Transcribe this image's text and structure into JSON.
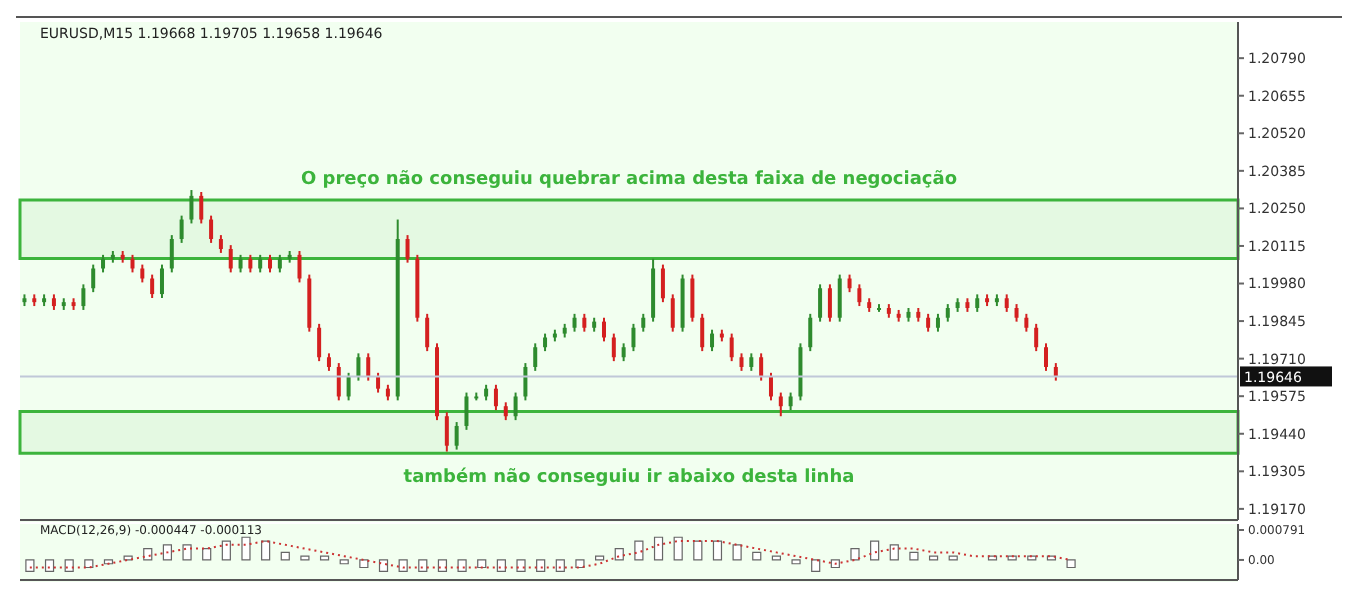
{
  "chart_data": [
    {
      "type": "candlestick",
      "title": "EURUSD,M15 1.19668 1.19705 1.19658 1.19646",
      "categories": [
        null,
        null,
        null,
        null,
        null,
        null,
        null,
        null,
        null,
        null,
        null,
        null,
        null,
        null,
        null,
        null,
        null,
        null,
        null,
        null,
        null,
        null,
        null,
        null,
        null,
        null,
        null,
        null,
        null,
        null,
        null,
        null,
        null,
        null,
        null,
        null,
        null,
        null,
        null,
        null,
        null,
        null,
        null,
        null,
        null,
        null,
        null,
        null,
        null,
        null,
        null,
        null,
        null,
        null,
        null,
        null,
        null,
        null,
        null,
        null,
        null,
        null,
        null,
        null,
        null,
        null,
        null,
        null,
        null,
        null,
        null,
        null,
        null,
        null,
        null,
        null,
        null,
        null,
        null,
        null,
        null,
        null,
        null,
        null,
        null,
        null,
        null,
        null,
        null,
        null,
        null,
        null,
        null,
        null,
        null,
        null,
        null,
        null,
        null,
        null,
        null,
        null,
        null,
        null,
        null,
        null,
        null,
        null,
        null,
        null,
        null,
        null,
        null,
        null,
        null,
        null,
        null,
        null,
        null,
        null,
        null,
        null,
        null,
        null
      ],
      "ohlc": [
        [
          1.19913,
          1.19941,
          1.19899,
          1.19927
        ],
        [
          1.19927,
          1.19941,
          1.19899,
          1.19913
        ],
        [
          1.19913,
          1.19941,
          1.19899,
          1.19927
        ],
        [
          1.19927,
          1.19941,
          1.19885,
          1.19899
        ],
        [
          1.19899,
          1.19927,
          1.19885,
          1.19913
        ],
        [
          1.19913,
          1.19927,
          1.19885,
          1.19899
        ],
        [
          1.19899,
          1.19977,
          1.19885,
          1.19963
        ],
        [
          1.19963,
          1.20048,
          1.19949,
          1.20034
        ],
        [
          1.20034,
          1.20083,
          1.2002,
          1.20069
        ],
        [
          1.20069,
          1.20097,
          1.20055,
          1.20083
        ],
        [
          1.20083,
          1.20097,
          1.20055,
          1.20069
        ],
        [
          1.20069,
          1.20083,
          1.2002,
          1.20034
        ],
        [
          1.20034,
          1.20048,
          1.19984,
          1.19998
        ],
        [
          1.19998,
          1.20012,
          1.19928,
          1.19942
        ],
        [
          1.19942,
          1.20048,
          1.19928,
          1.20034
        ],
        [
          1.20034,
          1.20154,
          1.2002,
          1.2014
        ],
        [
          1.2014,
          1.20224,
          1.20126,
          1.2021
        ],
        [
          1.2021,
          1.20316,
          1.20196,
          1.20295
        ],
        [
          1.20295,
          1.20309,
          1.20196,
          1.2021
        ],
        [
          1.2021,
          1.20224,
          1.20126,
          1.2014
        ],
        [
          1.2014,
          1.20154,
          1.2009,
          1.20104
        ],
        [
          1.20104,
          1.20118,
          1.2002,
          1.20034
        ],
        [
          1.20034,
          1.20083,
          1.2002,
          1.20069
        ],
        [
          1.20069,
          1.20083,
          1.2002,
          1.20034
        ],
        [
          1.20034,
          1.20083,
          1.2002,
          1.20069
        ],
        [
          1.20069,
          1.20083,
          1.2002,
          1.20034
        ],
        [
          1.20034,
          1.20083,
          1.2002,
          1.20069
        ],
        [
          1.20069,
          1.20097,
          1.20055,
          1.20083
        ],
        [
          1.20083,
          1.20097,
          1.19984,
          1.19998
        ],
        [
          1.19998,
          1.20012,
          1.19807,
          1.19821
        ],
        [
          1.19821,
          1.19835,
          1.19701,
          1.19715
        ],
        [
          1.19715,
          1.19729,
          1.19666,
          1.1968
        ],
        [
          1.1968,
          1.19694,
          1.1956,
          1.19574
        ],
        [
          1.19574,
          1.19659,
          1.1956,
          1.19645
        ],
        [
          1.19645,
          1.19729,
          1.19631,
          1.19715
        ],
        [
          1.19715,
          1.19729,
          1.19631,
          1.19645
        ],
        [
          1.19645,
          1.19659,
          1.19588,
          1.19602
        ],
        [
          1.19602,
          1.19616,
          1.1956,
          1.19574
        ],
        [
          1.19574,
          1.2021,
          1.1956,
          1.2014
        ],
        [
          1.2014,
          1.20154,
          1.20055,
          1.20069
        ],
        [
          1.20069,
          1.20083,
          1.19843,
          1.19857
        ],
        [
          1.19857,
          1.19871,
          1.19737,
          1.19751
        ],
        [
          1.19751,
          1.19765,
          1.19489,
          1.19503
        ],
        [
          1.19503,
          1.19517,
          1.19376,
          1.19397
        ],
        [
          1.19397,
          1.19482,
          1.19383,
          1.19468
        ],
        [
          1.19468,
          1.19588,
          1.19454,
          1.19574
        ],
        [
          1.19574,
          1.19588,
          1.1956,
          1.19574
        ],
        [
          1.19574,
          1.19616,
          1.1956,
          1.19602
        ],
        [
          1.19602,
          1.19616,
          1.19525,
          1.19539
        ],
        [
          1.19539,
          1.19553,
          1.19489,
          1.19503
        ],
        [
          1.19503,
          1.19588,
          1.19489,
          1.19574
        ],
        [
          1.19574,
          1.19694,
          1.1956,
          1.1968
        ],
        [
          1.1968,
          1.19765,
          1.19666,
          1.19751
        ],
        [
          1.19751,
          1.198,
          1.19737,
          1.19786
        ],
        [
          1.19786,
          1.19814,
          1.19772,
          1.198
        ],
        [
          1.198,
          1.19835,
          1.19786,
          1.19821
        ],
        [
          1.19821,
          1.19871,
          1.19807,
          1.19857
        ],
        [
          1.19857,
          1.19871,
          1.19807,
          1.19821
        ],
        [
          1.19821,
          1.19857,
          1.19807,
          1.19843
        ],
        [
          1.19843,
          1.19857,
          1.19772,
          1.19786
        ],
        [
          1.19786,
          1.198,
          1.19701,
          1.19715
        ],
        [
          1.19715,
          1.19765,
          1.19701,
          1.19751
        ],
        [
          1.19751,
          1.19835,
          1.19737,
          1.19821
        ],
        [
          1.19821,
          1.19871,
          1.19807,
          1.19857
        ],
        [
          1.19857,
          1.20069,
          1.19843,
          1.20034
        ],
        [
          1.20034,
          1.20048,
          1.19913,
          1.19927
        ],
        [
          1.19927,
          1.19941,
          1.19807,
          1.19821
        ],
        [
          1.19821,
          1.20012,
          1.19807,
          1.19998
        ],
        [
          1.19998,
          1.20012,
          1.19843,
          1.19857
        ],
        [
          1.19857,
          1.19871,
          1.19737,
          1.19751
        ],
        [
          1.19751,
          1.19814,
          1.19737,
          1.198
        ],
        [
          1.198,
          1.19814,
          1.19772,
          1.19786
        ],
        [
          1.19786,
          1.198,
          1.19701,
          1.19715
        ],
        [
          1.19715,
          1.19729,
          1.19666,
          1.1968
        ],
        [
          1.1968,
          1.19729,
          1.19666,
          1.19715
        ],
        [
          1.19715,
          1.19729,
          1.19631,
          1.19645
        ],
        [
          1.19645,
          1.19659,
          1.1956,
          1.19574
        ],
        [
          1.19574,
          1.19588,
          1.19503,
          1.19539
        ],
        [
          1.19539,
          1.19588,
          1.19525,
          1.19574
        ],
        [
          1.19574,
          1.19765,
          1.1956,
          1.19751
        ],
        [
          1.19751,
          1.19871,
          1.19737,
          1.19857
        ],
        [
          1.19857,
          1.19977,
          1.19843,
          1.19963
        ],
        [
          1.19963,
          1.19977,
          1.19843,
          1.19857
        ],
        [
          1.19857,
          1.20012,
          1.19843,
          1.19998
        ],
        [
          1.19998,
          1.20012,
          1.19949,
          1.19963
        ],
        [
          1.19963,
          1.19977,
          1.19899,
          1.19913
        ],
        [
          1.19913,
          1.19927,
          1.19878,
          1.19892
        ],
        [
          1.19892,
          1.19906,
          1.19878,
          1.19892
        ],
        [
          1.19892,
          1.19906,
          1.19857,
          1.19871
        ],
        [
          1.19871,
          1.19885,
          1.19843,
          1.19857
        ],
        [
          1.19857,
          1.19892,
          1.19843,
          1.19878
        ],
        [
          1.19878,
          1.19892,
          1.19843,
          1.19857
        ],
        [
          1.19857,
          1.19871,
          1.19807,
          1.19821
        ],
        [
          1.19821,
          1.19871,
          1.19807,
          1.19857
        ],
        [
          1.19857,
          1.19906,
          1.19843,
          1.19892
        ],
        [
          1.19892,
          1.19927,
          1.19878,
          1.19913
        ],
        [
          1.19913,
          1.19927,
          1.19878,
          1.19892
        ],
        [
          1.19892,
          1.19941,
          1.19878,
          1.19927
        ],
        [
          1.19927,
          1.19941,
          1.19899,
          1.19913
        ],
        [
          1.19913,
          1.19941,
          1.19899,
          1.19927
        ],
        [
          1.19927,
          1.19941,
          1.19878,
          1.19892
        ],
        [
          1.19892,
          1.19906,
          1.19843,
          1.19857
        ],
        [
          1.19857,
          1.19871,
          1.19807,
          1.19821
        ],
        [
          1.19821,
          1.19835,
          1.19737,
          1.19751
        ],
        [
          1.19751,
          1.19765,
          1.19666,
          1.1968
        ],
        [
          1.1968,
          1.19694,
          1.19631,
          1.19646
        ],
        null,
        null,
        null,
        null,
        null,
        null,
        null,
        null,
        null,
        null,
        null,
        null,
        null,
        null,
        null,
        null,
        null,
        null
      ],
      "colors": [
        "#2e8b2e",
        "#d42020",
        "#2e8b2e",
        "#d42020",
        "#2e8b2e",
        "#d42020",
        "#2e8b2e",
        "#2e8b2e",
        "#2e8b2e",
        "#2e8b2e",
        "#d42020",
        "#d42020",
        "#d42020",
        "#d42020",
        "#2e8b2e",
        "#2e8b2e",
        "#2e8b2e",
        "#2e8b2e",
        "#d42020",
        "#d42020",
        "#d42020",
        "#d42020",
        "#2e8b2e",
        "#d42020",
        "#2e8b2e",
        "#d42020",
        "#2e8b2e",
        "#2e8b2e",
        "#d42020",
        "#d42020",
        "#d42020",
        "#d42020",
        "#d42020",
        "#2e8b2e",
        "#2e8b2e",
        "#d42020",
        "#d42020",
        "#d42020",
        "#2e8b2e",
        "#d42020",
        "#d42020",
        "#d42020",
        "#d42020",
        "#d42020",
        "#2e8b2e",
        "#2e8b2e",
        "#2e8b2e",
        "#2e8b2e",
        "#d42020",
        "#d42020",
        "#2e8b2e",
        "#2e8b2e",
        "#2e8b2e",
        "#2e8b2e",
        "#2e8b2e",
        "#2e8b2e",
        "#2e8b2e",
        "#d42020",
        "#2e8b2e",
        "#d42020",
        "#d42020",
        "#2e8b2e",
        "#2e8b2e",
        "#2e8b2e",
        "#2e8b2e",
        "#d42020",
        "#d42020",
        "#2e8b2e",
        "#d42020",
        "#d42020",
        "#2e8b2e",
        "#d42020",
        "#d42020",
        "#d42020",
        "#2e8b2e",
        "#d42020",
        "#d42020",
        "#d42020",
        "#2e8b2e",
        "#2e8b2e",
        "#2e8b2e",
        "#2e8b2e",
        "#d42020",
        "#2e8b2e",
        "#d42020",
        "#d42020",
        "#d42020",
        "#2e8b2e",
        "#d42020",
        "#d42020",
        "#2e8b2e",
        "#d42020",
        "#d42020",
        "#2e8b2e",
        "#2e8b2e",
        "#2e8b2e",
        "#d42020",
        "#2e8b2e",
        "#d42020",
        "#2e8b2e",
        "#d42020",
        "#d42020",
        "#d42020",
        "#d42020",
        "#d42020",
        "#d42020",
        null,
        null,
        null,
        null,
        null,
        null,
        null,
        null,
        null,
        null,
        null,
        null,
        null,
        null,
        null,
        null,
        null,
        null
      ],
      "ylim": [
        1.1913,
        1.2092
      ],
      "yticks": [
        {
          "value": 1.1917,
          "label": "1.19170"
        },
        1.19305,
        {
          "value": 1.1944,
          "label": "1.19440"
        },
        1.19575,
        {
          "value": 1.1971,
          "label": "1.19710"
        },
        1.19845,
        {
          "value": 1.1998,
          "label": "1.19980"
        },
        1.20115,
        {
          "value": 1.2025,
          "label": "1.20250"
        },
        1.20385,
        {
          "value": 1.2052,
          "label": "1.20520"
        },
        1.20655,
        {
          "value": 1.2079,
          "label": "1.20790"
        }
      ],
      "tick_labels": "y",
      "ref_lines": [
        {
          "axis": "y",
          "value": 1.19646,
          "label": "1.19646",
          "color": "#c0c8d8"
        }
      ],
      "bands": [
        {
          "axis": "y",
          "from": 1.2007,
          "to": 1.2028,
          "label": "O preço não conseguiu quebrar acima desta faixa de negociação",
          "color": "#3cb43c"
        },
        {
          "axis": "y",
          "from": 1.1937,
          "to": 1.1952,
          "label": "também não conseguiu  ir abaixo desta linha",
          "color": "#3cb43c"
        }
      ]
    },
    {
      "type": "bar",
      "title": "MACD(12,26,9) -0.000447 -0.000113",
      "categories": [
        null,
        null,
        null,
        null,
        null,
        null,
        null,
        null,
        null,
        null,
        null,
        null,
        null,
        null,
        null,
        null,
        null,
        null,
        null,
        null,
        null,
        null,
        null,
        null,
        null,
        null,
        null,
        null,
        null,
        null,
        null,
        null,
        null,
        null,
        null,
        null,
        null,
        null,
        null,
        null,
        null,
        null,
        null,
        null,
        null,
        null,
        null,
        null,
        null,
        null,
        null,
        null,
        null,
        null,
        null,
        null,
        null,
        null,
        null,
        null,
        null,
        null
      ],
      "series": [
        {
          "type": "bar",
          "color": "#666666",
          "values": [
            -0.0003,
            -0.0003,
            -0.0003,
            -0.0002,
            -0.0001,
            0.0001,
            0.0003,
            0.0004,
            0.0004,
            0.0003,
            0.0005,
            0.0006,
            0.0005,
            0.0002,
            0.0001,
            0.0001,
            -0.0001,
            -0.0002,
            -0.0003,
            -0.0003,
            -0.0003,
            -0.0003,
            -0.0003,
            -0.0002,
            -0.0003,
            -0.0003,
            -0.0003,
            -0.0003,
            -0.0002,
            0.0001,
            0.0003,
            0.0005,
            0.0006,
            0.0006,
            0.0005,
            0.0005,
            0.0004,
            0.0002,
            0.0001,
            -0.0001,
            -0.0003,
            -0.0002,
            0.0003,
            0.0005,
            0.0004,
            0.0002,
            0.0001,
            0.0001,
            0,
            0.0001,
            0.0001,
            0.0001,
            0.0001,
            -0.0002,
            null,
            null,
            null,
            null,
            null,
            null,
            null,
            null
          ]
        },
        {
          "type": "line",
          "color": "#cc3333",
          "line_style": "dotted",
          "values": [
            -0.0002,
            -0.0002,
            -0.0002,
            -0.0002,
            -0.0001,
            0,
            0.0001,
            0.0002,
            0.0003,
            0.0003,
            0.0004,
            0.0004,
            0.0005,
            0.0004,
            0.0003,
            0.0002,
            0.0001,
            0,
            -0.0001,
            -0.0002,
            -0.0002,
            -0.0002,
            -0.0002,
            -0.0002,
            -0.0002,
            -0.0002,
            -0.0002,
            -0.0002,
            -0.0002,
            -0.0001,
            0.0001,
            0.0002,
            0.0004,
            0.0005,
            0.0005,
            0.0005,
            0.0004,
            0.0003,
            0.0002,
            0.0001,
            0,
            -0.0001,
            0,
            0.0002,
            0.0003,
            0.0003,
            0.0002,
            0.0002,
            0.0001,
            0.0001,
            0.0001,
            0.0001,
            0.0001,
            0,
            null,
            null,
            null,
            null,
            null,
            null,
            null,
            null
          ]
        }
      ],
      "ylim": [
        -0.00053,
        0.00095
      ],
      "yticks": [
        {
          "value": 0,
          "label": "0.00"
        },
        0.000791
      ],
      "tick_labels": "y"
    }
  ]
}
